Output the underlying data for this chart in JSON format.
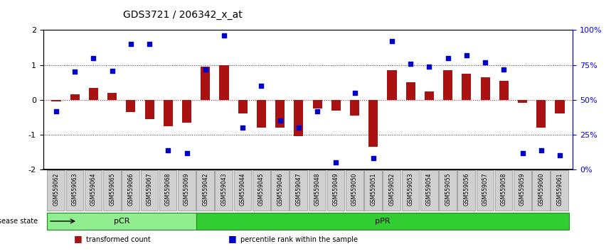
{
  "title": "GDS3721 / 206342_x_at",
  "samples": [
    "GSM559062",
    "GSM559063",
    "GSM559064",
    "GSM559065",
    "GSM559066",
    "GSM559067",
    "GSM559068",
    "GSM559069",
    "GSM559042",
    "GSM559043",
    "GSM559044",
    "GSM559045",
    "GSM559046",
    "GSM559047",
    "GSM559048",
    "GSM559049",
    "GSM559050",
    "GSM559051",
    "GSM559052",
    "GSM559053",
    "GSM559054",
    "GSM559055",
    "GSM559056",
    "GSM559057",
    "GSM559058",
    "GSM559059",
    "GSM559060",
    "GSM559061"
  ],
  "transformed_count": [
    -0.05,
    0.15,
    0.35,
    0.2,
    -0.35,
    -0.55,
    -0.75,
    -0.65,
    0.95,
    1.0,
    -0.4,
    -0.8,
    -0.8,
    -1.05,
    -0.25,
    -0.3,
    -0.45,
    -1.35,
    0.85,
    0.5,
    0.25,
    0.85,
    0.75,
    0.65,
    0.55,
    -0.08,
    -0.8,
    -0.4
  ],
  "percentile_rank": [
    42,
    70,
    80,
    71,
    90,
    90,
    14,
    12,
    72,
    96,
    30,
    60,
    35,
    30,
    42,
    5,
    55,
    8,
    92,
    76,
    74,
    80,
    82,
    77,
    72,
    12,
    14,
    10
  ],
  "groups": [
    {
      "label": "pCR",
      "start": 0,
      "end": 8,
      "color": "#90ee90"
    },
    {
      "label": "pPR",
      "start": 8,
      "end": 28,
      "color": "#32cd32"
    }
  ],
  "ylim": [
    -2,
    2
  ],
  "yticks": [
    -2,
    -1,
    0,
    1,
    2
  ],
  "right_yticks": [
    0,
    25,
    50,
    75,
    100
  ],
  "right_yticklabels": [
    "0%",
    "25%",
    "50%",
    "75%",
    "100%"
  ],
  "bar_color": "#aa1111",
  "scatter_color": "#0000cc",
  "dotted_line_color": "#333333",
  "zero_line_color": "#cc2222",
  "background_color": "#ffffff",
  "legend_items": [
    {
      "label": "transformed count",
      "color": "#aa1111",
      "marker": "s"
    },
    {
      "label": "percentile rank within the sample",
      "color": "#0000cc",
      "marker": "s"
    }
  ]
}
